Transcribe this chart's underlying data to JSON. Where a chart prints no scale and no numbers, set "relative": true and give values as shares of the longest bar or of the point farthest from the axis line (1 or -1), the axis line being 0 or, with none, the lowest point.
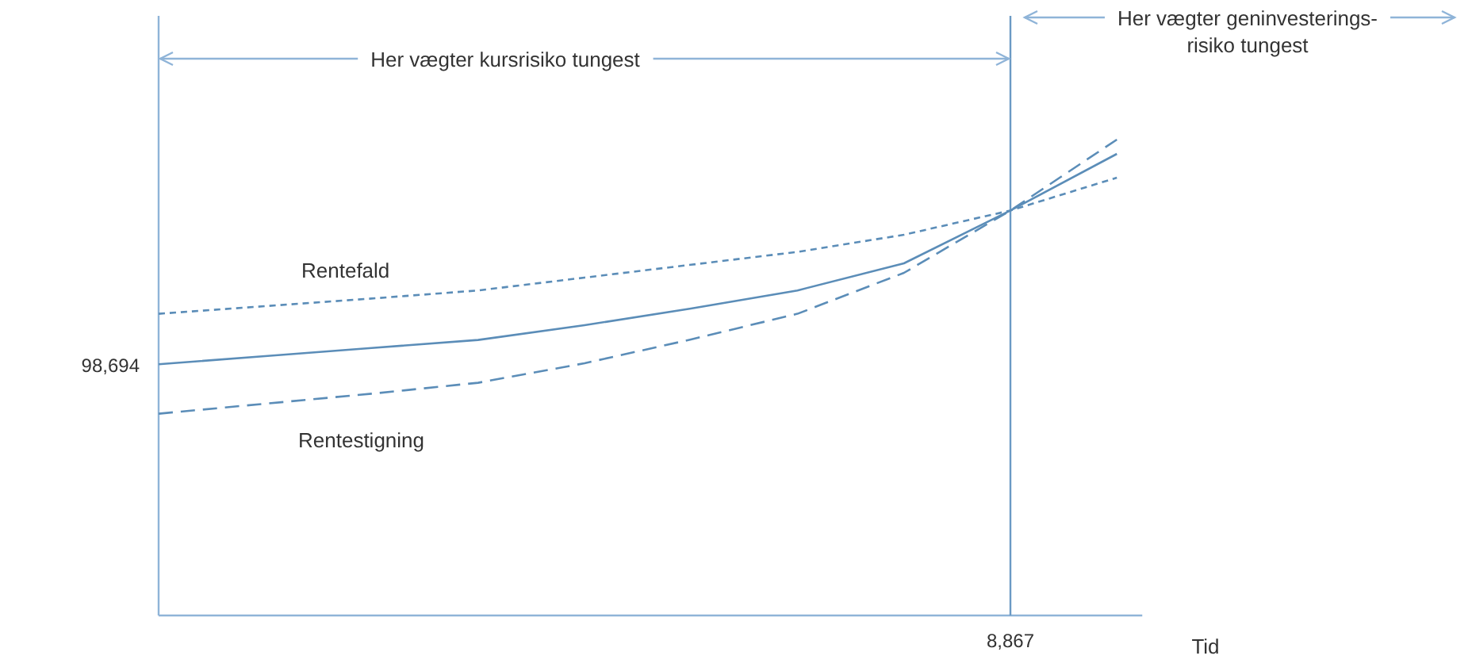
{
  "chart_data": {
    "type": "line",
    "relative": true,
    "xlabel": "Tid",
    "categories": [
      null,
      null,
      null,
      null,
      null,
      null,
      null,
      null,
      null,
      null
    ],
    "ref_lines": [
      {
        "axis": "x",
        "label": "8,867",
        "color": "#6b9ac4"
      }
    ],
    "annotations": [
      "98,694",
      "Her vægter kursrisiko tungest",
      "Her vægter geninvesterings-\nrisiko tungest"
    ],
    "series": [
      {
        "name": "Rentefald",
        "color": "#5b8db8",
        "line_style": "dotted",
        "values": [
          0.634,
          0.65,
          0.666,
          0.683,
          0.71,
          0.737,
          0.764,
          0.8,
          0.851,
          0.92
        ]
      },
      {
        "color": "#5b8db8",
        "line_style": "solid",
        "values": [
          0.528,
          0.545,
          0.562,
          0.579,
          0.61,
          0.645,
          0.683,
          0.74,
          0.851,
          0.97
        ]
      },
      {
        "name": "Rentestigning",
        "color": "#5b8db8",
        "line_style": "dashed",
        "values": [
          0.424,
          0.445,
          0.466,
          0.489,
          0.53,
          0.58,
          0.634,
          0.72,
          0.851,
          1.0
        ]
      }
    ]
  }
}
